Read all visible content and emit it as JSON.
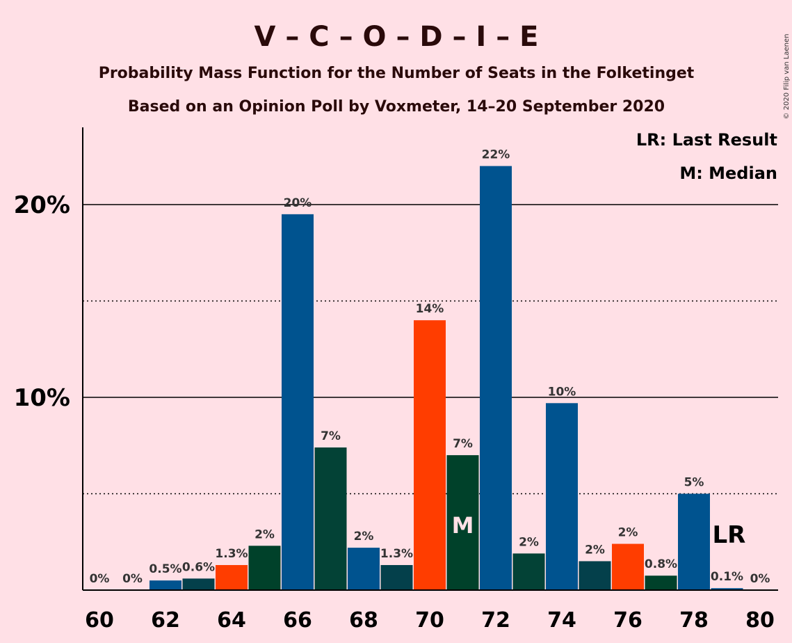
{
  "title": "V – C – O – D – I – E",
  "subtitle1": "Probability Mass Function for the Number of Seats in the Folketinget",
  "subtitle2": "Based on an Opinion Poll by Voxmeter, 14–20 September 2020",
  "copyright": "© 2020 Filip van Laenen",
  "legend": {
    "lr": "LR: Last Result",
    "m": "M: Median"
  },
  "markers": {
    "median_label": "M",
    "median_seat": 71,
    "lr_label": "LR",
    "lr_seat": 79
  },
  "colors": {
    "background": "#FFE0E6",
    "V": "#00538F",
    "C": "#034236",
    "O": "#FF3D00",
    "D": "#00412A",
    "I": "#04404B"
  },
  "chart_data": {
    "type": "bar",
    "x": [
      60,
      61,
      62,
      63,
      64,
      65,
      66,
      67,
      68,
      69,
      70,
      71,
      72,
      73,
      74,
      75,
      76,
      77,
      78,
      79,
      80
    ],
    "values": [
      0,
      0,
      0.5,
      0.6,
      1.3,
      2.3,
      19.5,
      7.4,
      2.2,
      1.3,
      14.0,
      7.0,
      22.0,
      1.9,
      9.7,
      1.5,
      2.4,
      0.75,
      5.0,
      0.1,
      0
    ],
    "labels": [
      "0%",
      "0%",
      "0.5%",
      "0.6%",
      "1.3%",
      "2%",
      "20%",
      "7%",
      "2%",
      "1.3%",
      "14%",
      "7%",
      "22%",
      "2%",
      "10%",
      "2%",
      "2%",
      "0.8%",
      "5%",
      "0.1%",
      "0%"
    ],
    "bar_colors": [
      "#00538F",
      "#00538F",
      "#00538F",
      "#04404B",
      "#FF3D00",
      "#00412A",
      "#00538F",
      "#034236",
      "#00538F",
      "#04404B",
      "#FF3D00",
      "#00412A",
      "#00538F",
      "#034236",
      "#00538F",
      "#04404B",
      "#FF3D00",
      "#00412A",
      "#00538F",
      "#00538F",
      "#00538F"
    ],
    "x_ticks": [
      "60",
      "62",
      "64",
      "66",
      "68",
      "70",
      "72",
      "74",
      "76",
      "78",
      "80"
    ],
    "y_ticks": [
      "10%",
      "20%"
    ],
    "y_tick_values": [
      10,
      20
    ],
    "y_dotted_values": [
      5,
      15
    ],
    "ylim": [
      0,
      24
    ],
    "xlabel": "",
    "ylabel": "",
    "grid": true,
    "legend_position": "top-right"
  }
}
